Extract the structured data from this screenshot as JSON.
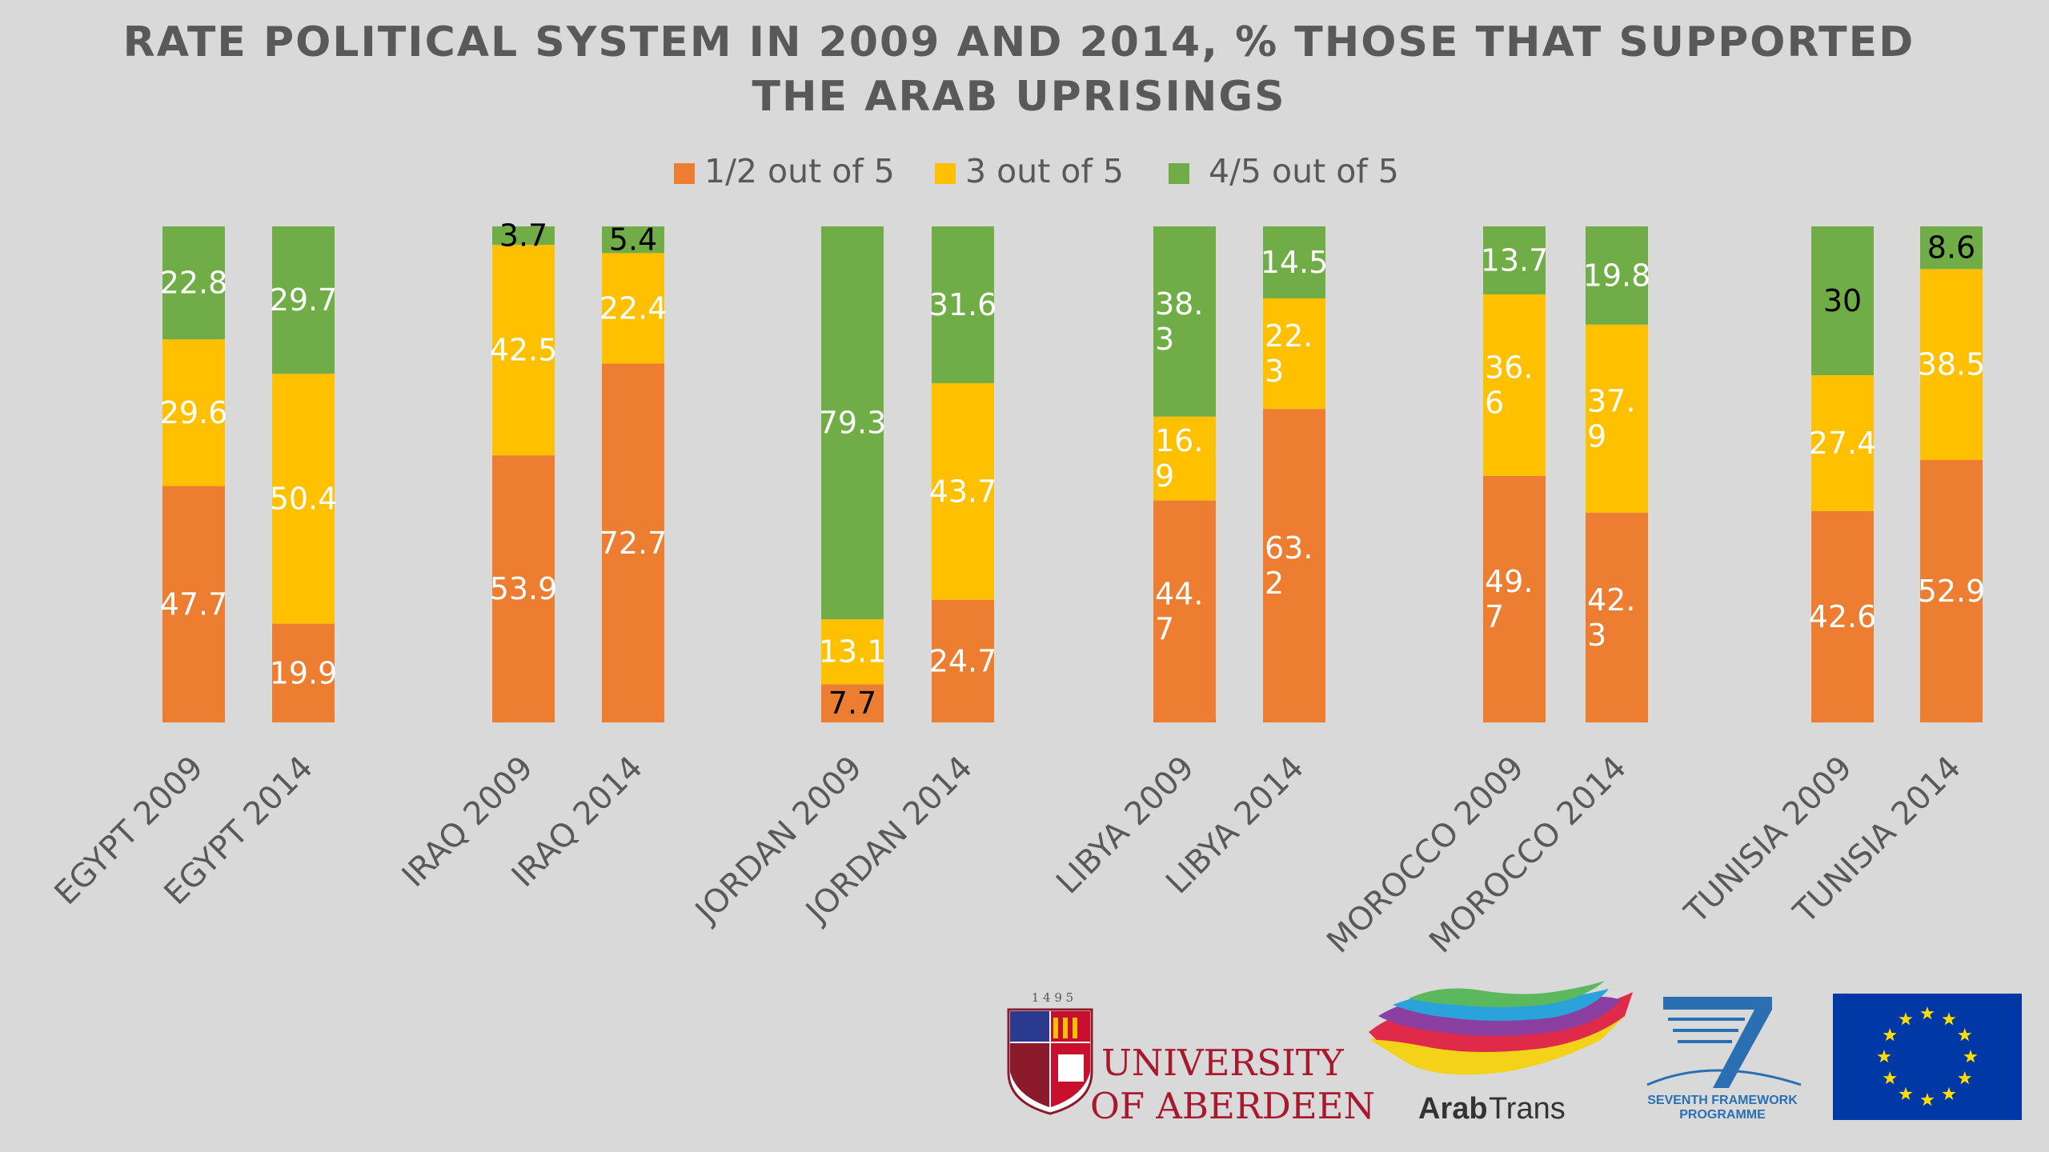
{
  "colors": {
    "background": "#d9d9d9",
    "orange": "#ed7d31",
    "yellow": "#ffc000",
    "green": "#70ad47",
    "text": "#595959",
    "label_light": "#ffffff",
    "label_dark": "#000000"
  },
  "chart_data": {
    "type": "bar",
    "stacked": true,
    "normalized_to_100": true,
    "title": "RATE POLITICAL SYSTEM IN 2009 AND 2014, % THOSE THAT SUPPORTED THE ARAB UPRISINGS",
    "title_lines": [
      "RATE POLITICAL SYSTEM IN 2009 AND 2014, % THOSE THAT SUPPORTED",
      "THE ARAB UPRISINGS"
    ],
    "legend_position": "top",
    "categories": [
      "EGYPT 2009",
      "EGYPT 2014",
      "IRAQ 2009",
      "IRAQ 2014",
      "JORDAN 2009",
      "JORDAN 2014",
      "LIBYA 2009",
      "LIBYA 2014",
      "MOROCCO 2009",
      "MOROCCO 2014",
      "TUNISIA  2009",
      "TUNISIA  2014"
    ],
    "series": [
      {
        "name": "1/2 out of 5",
        "values": [
          47.7,
          19.9,
          53.9,
          72.7,
          7.7,
          24.7,
          44.7,
          63.2,
          49.7,
          42.3,
          42.6,
          52.9
        ],
        "labels": [
          [
            "47.7"
          ],
          [
            "19.9"
          ],
          [
            "53.9"
          ],
          [
            "72.7"
          ],
          [
            "7.7"
          ],
          [
            "24.7"
          ],
          [
            "44.",
            "7"
          ],
          [
            "63.",
            "2"
          ],
          [
            "49.",
            "7"
          ],
          [
            "42.",
            "3"
          ],
          [
            "42.6"
          ],
          [
            "52.9"
          ]
        ]
      },
      {
        "name": "3 out of 5",
        "values": [
          29.6,
          50.4,
          42.5,
          22.4,
          13.1,
          43.7,
          16.9,
          22.3,
          36.6,
          37.9,
          27.4,
          38.5
        ],
        "labels": [
          [
            "29.6"
          ],
          [
            "50.4"
          ],
          [
            "42.5"
          ],
          [
            "22.4"
          ],
          [
            "13.1"
          ],
          [
            "43.7"
          ],
          [
            "16.",
            "9"
          ],
          [
            "22.",
            "3"
          ],
          [
            "36.",
            "6"
          ],
          [
            "37.",
            "9"
          ],
          [
            "27.4"
          ],
          [
            "38.5"
          ]
        ]
      },
      {
        "name": "4/5 out of 5",
        "values": [
          22.8,
          29.7,
          3.7,
          5.4,
          79.3,
          31.6,
          38.3,
          14.5,
          13.7,
          19.8,
          30,
          8.6
        ],
        "labels": [
          [
            "22.8"
          ],
          [
            "29.7"
          ],
          [
            "3.7"
          ],
          [
            "5.4"
          ],
          [
            "79.3"
          ],
          [
            "31.6"
          ],
          [
            "38.",
            "3"
          ],
          [
            "14.5"
          ],
          [
            "13.7"
          ],
          [
            "19.8"
          ],
          [
            "30"
          ],
          [
            "8.6"
          ]
        ]
      }
    ],
    "dark_labels": [
      [
        "JORDAN 2009",
        0
      ],
      [
        "IRAQ 2009",
        2
      ],
      [
        "IRAQ 2014",
        2
      ],
      [
        "TUNISIA  2009",
        2
      ],
      [
        "TUNISIA  2014",
        2
      ]
    ]
  },
  "logos": {
    "aberdeen": {
      "year_digits": "1 4 9 5",
      "line1": "UNIVERSITY",
      "line2": "OF ABERDEEN"
    },
    "arabtrans": {
      "bold": "Arab",
      "regular": "Trans"
    },
    "fp7": {
      "line1": "SEVENTH FRAMEWORK",
      "line2": "PROGRAMME"
    }
  }
}
